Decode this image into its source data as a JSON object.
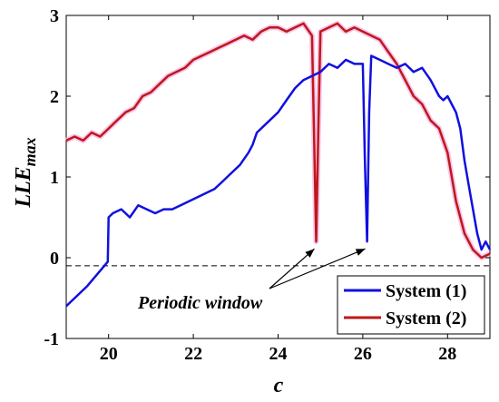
{
  "chart_data": {
    "type": "line",
    "xlabel": "c",
    "ylabel_main": "LLE",
    "ylabel_sub": "max",
    "xlim": [
      19,
      29
    ],
    "ylim": [
      -1,
      3
    ],
    "xticks": [
      20,
      22,
      24,
      26,
      28
    ],
    "yticks": [
      -1,
      0,
      1,
      2,
      3
    ],
    "xtick_labels": [
      "20",
      "22",
      "24",
      "26",
      "28"
    ],
    "ytick_labels": [
      "-1",
      "0",
      "1",
      "2",
      "3"
    ],
    "grid": false,
    "legend_position": "bottom-right",
    "reference_line": {
      "y": -0.1,
      "style": "dashed"
    },
    "annotation": {
      "text": "Periodic window",
      "targets": [
        [
          24.9,
          0.2
        ],
        [
          26.1,
          0.2
        ]
      ]
    },
    "series": [
      {
        "name": "System (1)",
        "color": "#1010e0",
        "x": [
          19,
          19.5,
          19.9,
          19.98,
          20.0,
          20.1,
          20.3,
          20.5,
          20.7,
          20.9,
          21.1,
          21.3,
          21.5,
          21.7,
          21.9,
          22.1,
          22.3,
          22.5,
          22.7,
          22.9,
          23.1,
          23.3,
          23.4,
          23.5,
          23.7,
          23.9,
          24.0,
          24.2,
          24.4,
          24.6,
          24.8,
          25.0,
          25.2,
          25.4,
          25.6,
          25.8,
          26.0,
          26.05,
          26.1,
          26.15,
          26.2,
          26.4,
          26.6,
          26.8,
          27.0,
          27.2,
          27.4,
          27.6,
          27.8,
          27.9,
          28.0,
          28.2,
          28.3,
          28.4,
          28.5,
          28.6,
          28.7,
          28.8,
          28.9,
          29.0
        ],
        "y": [
          -0.6,
          -0.35,
          -0.1,
          -0.05,
          0.5,
          0.55,
          0.6,
          0.5,
          0.65,
          0.6,
          0.55,
          0.6,
          0.6,
          0.65,
          0.7,
          0.75,
          0.8,
          0.85,
          0.95,
          1.05,
          1.15,
          1.3,
          1.4,
          1.55,
          1.65,
          1.75,
          1.8,
          1.95,
          2.1,
          2.2,
          2.25,
          2.3,
          2.4,
          2.35,
          2.45,
          2.4,
          2.4,
          1.2,
          0.2,
          1.8,
          2.5,
          2.45,
          2.4,
          2.35,
          2.4,
          2.3,
          2.35,
          2.2,
          2.0,
          1.95,
          2.0,
          1.8,
          1.6,
          1.2,
          0.9,
          0.6,
          0.3,
          0.1,
          0.2,
          0.1
        ]
      },
      {
        "name": "System (2)",
        "color": "#c01818",
        "x": [
          19,
          19.2,
          19.4,
          19.6,
          19.8,
          20.0,
          20.2,
          20.4,
          20.6,
          20.8,
          21.0,
          21.2,
          21.4,
          21.6,
          21.8,
          22.0,
          22.2,
          22.4,
          22.6,
          22.8,
          23.0,
          23.2,
          23.4,
          23.6,
          23.8,
          24.0,
          24.2,
          24.4,
          24.6,
          24.8,
          24.85,
          24.9,
          24.95,
          25.0,
          25.2,
          25.4,
          25.6,
          25.8,
          26.0,
          26.2,
          26.4,
          26.6,
          26.8,
          27.0,
          27.2,
          27.4,
          27.6,
          27.8,
          28.0,
          28.2,
          28.4,
          28.6,
          28.8,
          29.0
        ],
        "y": [
          1.45,
          1.5,
          1.45,
          1.55,
          1.5,
          1.6,
          1.7,
          1.8,
          1.85,
          2.0,
          2.05,
          2.15,
          2.25,
          2.3,
          2.35,
          2.45,
          2.5,
          2.55,
          2.6,
          2.65,
          2.7,
          2.75,
          2.7,
          2.8,
          2.85,
          2.85,
          2.8,
          2.85,
          2.9,
          2.75,
          1.5,
          0.2,
          1.6,
          2.8,
          2.85,
          2.9,
          2.8,
          2.85,
          2.8,
          2.75,
          2.7,
          2.55,
          2.4,
          2.2,
          2.0,
          1.9,
          1.7,
          1.6,
          1.3,
          0.7,
          0.3,
          0.1,
          0.0,
          0.05
        ]
      }
    ]
  }
}
